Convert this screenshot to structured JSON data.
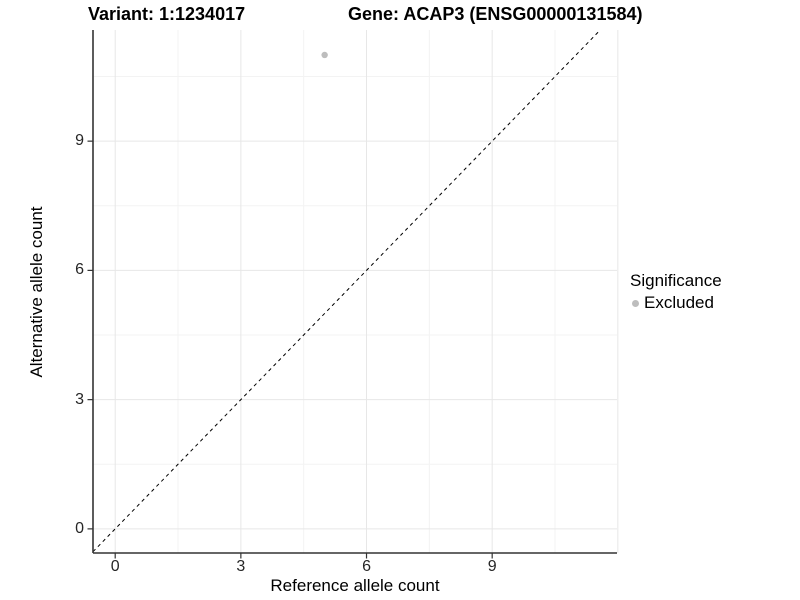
{
  "title": {
    "variant": "Variant: 1:1234017",
    "gene": "Gene: ACAP3 (ENSG00000131584)"
  },
  "chart_data": {
    "type": "scatter",
    "title": "Variant: 1:1234017 | Gene: ACAP3 (ENSG00000131584)",
    "xlabel": "Reference allele count",
    "ylabel": "Alternative allele count",
    "x_ticks": [
      0,
      3,
      6,
      9
    ],
    "y_ticks": [
      0,
      3,
      6,
      9
    ],
    "x_grid_major": [
      0,
      3,
      6,
      9,
      12
    ],
    "y_grid_major": [
      0,
      3,
      6,
      9
    ],
    "x_grid_minor": [
      1.5,
      4.5,
      7.5,
      10.5
    ],
    "y_grid_minor": [
      1.5,
      4.5,
      7.5,
      10.5
    ],
    "xlim": [
      -0.53,
      11.98
    ],
    "ylim": [
      -0.56,
      11.58
    ],
    "grid": true,
    "series": [
      {
        "name": "Excluded",
        "color": "#bdbdbd",
        "points": [
          {
            "x": 5,
            "y": 11
          }
        ]
      }
    ],
    "reference_line": {
      "type": "identity",
      "equation": "y = x",
      "style": "dashed",
      "color": "#000000"
    },
    "legend": {
      "title": "Significance",
      "position": "right",
      "entries": [
        {
          "label": "Excluded",
          "color": "#bdbdbd",
          "marker": "circle"
        }
      ]
    }
  },
  "colors": {
    "point": "#bdbdbd",
    "axis": "#333333",
    "grid_major": "#e7e7e7",
    "grid_minor": "#f3f3f3",
    "text": "#000000"
  }
}
